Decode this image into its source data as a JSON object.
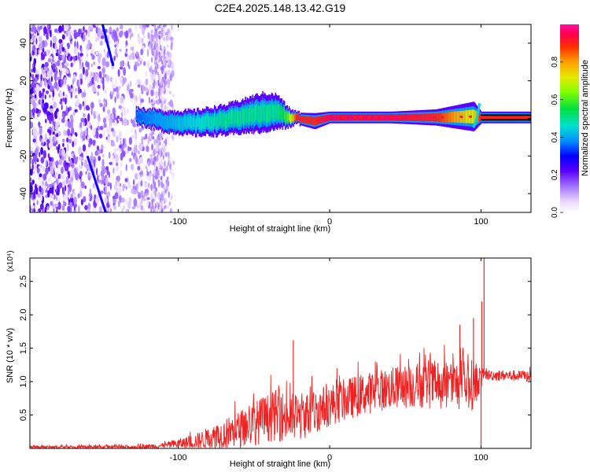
{
  "title": "C2E4.2025.148.13.42.G19",
  "chart_data": [
    {
      "type": "heatmap",
      "xlabel": "Height of straight line (km)",
      "ylabel": "Frequency (Hz)",
      "xlim": [
        -198,
        133
      ],
      "ylim": [
        -50,
        50
      ],
      "xticks": [
        -100,
        0,
        100
      ],
      "yticks": [
        -40,
        -20,
        0,
        20,
        40
      ],
      "xtick_labels": [
        "-100",
        "0",
        "100"
      ],
      "ytick_labels": [
        "-40",
        "-20",
        "0",
        "20",
        "40"
      ],
      "colorbar": {
        "label": "Normalized spectral amplitude",
        "range": [
          0,
          1
        ],
        "ticks": [
          "0.0",
          "0.2",
          "0.4",
          "0.6",
          "0.8"
        ],
        "tick_values": [
          0.0,
          0.2,
          0.4,
          0.6,
          0.8
        ]
      },
      "trace": [
        {
          "x": -128,
          "y": 1.5,
          "width": 1.5,
          "amp": 0.35
        },
        {
          "x": -110,
          "y": -1.5,
          "width": 2.0,
          "amp": 0.4
        },
        {
          "x": -90,
          "y": -2.5,
          "width": 2.5,
          "amp": 0.45
        },
        {
          "x": -70,
          "y": -1.0,
          "width": 3.0,
          "amp": 0.5
        },
        {
          "x": -55,
          "y": 1.5,
          "width": 3.5,
          "amp": 0.5
        },
        {
          "x": -45,
          "y": 3.0,
          "width": 4.0,
          "amp": 0.5
        },
        {
          "x": -35,
          "y": 3.5,
          "width": 3.5,
          "amp": 0.5
        },
        {
          "x": -28,
          "y": 0.5,
          "width": 2.0,
          "amp": 0.6
        },
        {
          "x": -22,
          "y": 0.0,
          "width": 1.0,
          "amp": 0.9
        },
        {
          "x": -10,
          "y": -1.5,
          "width": 1.5,
          "amp": 0.9
        },
        {
          "x": 0,
          "y": 0.5,
          "width": 1.0,
          "amp": 0.95
        },
        {
          "x": 40,
          "y": 0.5,
          "width": 1.0,
          "amp": 0.95
        },
        {
          "x": 70,
          "y": 0.5,
          "width": 1.5,
          "amp": 0.9
        },
        {
          "x": 95,
          "y": 1.0,
          "width": 3.0,
          "amp": 0.7
        },
        {
          "x": 100,
          "y": 0.5,
          "width": 1.0,
          "amp": 0.95
        },
        {
          "x": 133,
          "y": 0.5,
          "width": 1.0,
          "amp": 0.95
        }
      ]
    },
    {
      "type": "line",
      "xlabel": "Height of straight line (km)",
      "ylabel": "SNR (10 * v/v)",
      "scale_label": "(x10⁴)",
      "xlim": [
        -198,
        133
      ],
      "ylim": [
        0,
        2.85
      ],
      "xticks": [
        -100,
        0,
        100
      ],
      "yticks": [
        0.5,
        1.0,
        1.5,
        2.0,
        2.5
      ],
      "xtick_labels": [
        "-100",
        "0",
        "100"
      ],
      "ytick_labels": [
        "0.5",
        "1.0",
        "1.5",
        "2.0",
        "2.5"
      ],
      "color": "#ee2222",
      "envelope": [
        {
          "x": -198,
          "base": 0.02,
          "amp": 0.03
        },
        {
          "x": -130,
          "base": 0.02,
          "amp": 0.04
        },
        {
          "x": -110,
          "base": 0.04,
          "amp": 0.06
        },
        {
          "x": -90,
          "base": 0.1,
          "amp": 0.15
        },
        {
          "x": -75,
          "base": 0.18,
          "amp": 0.28
        },
        {
          "x": -60,
          "base": 0.28,
          "amp": 0.4
        },
        {
          "x": -45,
          "base": 0.42,
          "amp": 0.5
        },
        {
          "x": -35,
          "base": 0.5,
          "amp": 0.55
        },
        {
          "x": -25,
          "base": 0.45,
          "amp": 0.55
        },
        {
          "x": -15,
          "base": 0.5,
          "amp": 0.5
        },
        {
          "x": 0,
          "base": 0.65,
          "amp": 0.45
        },
        {
          "x": 20,
          "base": 0.8,
          "amp": 0.45
        },
        {
          "x": 40,
          "base": 0.9,
          "amp": 0.45
        },
        {
          "x": 60,
          "base": 0.95,
          "amp": 0.5
        },
        {
          "x": 80,
          "base": 0.95,
          "amp": 0.55
        },
        {
          "x": 95,
          "base": 0.95,
          "amp": 0.55
        },
        {
          "x": 102,
          "base": 1.1,
          "amp": 0.12
        },
        {
          "x": 133,
          "base": 1.08,
          "amp": 0.12
        }
      ],
      "spikes": [
        {
          "x": -24.0,
          "y": 1.62
        },
        {
          "x": 100.5,
          "y": 2.2
        },
        {
          "x": 102.0,
          "y": 2.85
        },
        {
          "x": 100.0,
          "y": 0.05
        },
        {
          "x": 95.0,
          "y": 1.95
        },
        {
          "x": 86.0,
          "y": 1.85
        }
      ]
    }
  ]
}
